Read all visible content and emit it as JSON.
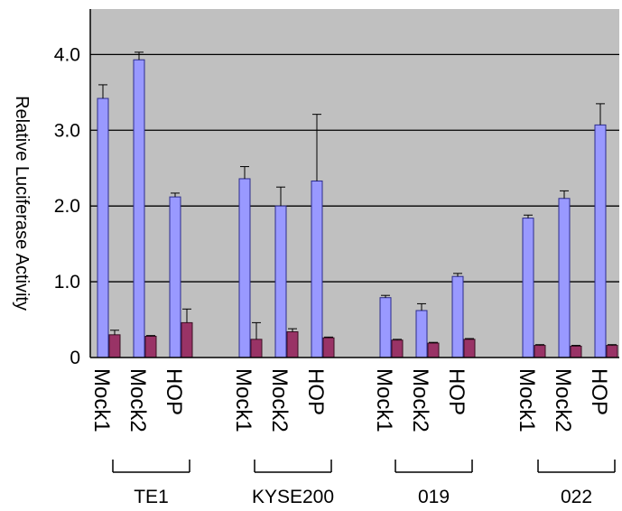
{
  "chart_data": {
    "type": "bar",
    "ylabel": "Relative Luciferase Activity",
    "ylim": [
      0,
      4.6
    ],
    "yticks": [
      {
        "value": 0,
        "label": "0"
      },
      {
        "value": 1,
        "label": "1.0"
      },
      {
        "value": 2,
        "label": "2.0"
      },
      {
        "value": 3,
        "label": "3.0"
      },
      {
        "value": 4,
        "label": "4.0"
      }
    ],
    "grid": true,
    "plot_background": "#c0c0c0",
    "groups": [
      {
        "name": "TE1",
        "categories": [
          "Mock1",
          "Mock2",
          "HOP"
        ],
        "series_values": [
          [
            3.42,
            3.93,
            2.12
          ],
          [
            0.3,
            0.28,
            0.46
          ]
        ],
        "series_errors": [
          [
            0.18,
            0.1,
            0.05
          ],
          [
            0.06,
            0.01,
            0.18
          ]
        ]
      },
      {
        "name": "KYSE200",
        "categories": [
          "Mock1",
          "Mock2",
          "HOP"
        ],
        "series_values": [
          [
            2.36,
            2.0,
            2.33
          ],
          [
            0.24,
            0.34,
            0.26
          ]
        ],
        "series_errors": [
          [
            0.16,
            0.25,
            0.88
          ],
          [
            0.22,
            0.04,
            0.01
          ]
        ]
      },
      {
        "name": "019",
        "categories": [
          "Mock1",
          "Mock2",
          "HOP"
        ],
        "series_values": [
          [
            0.79,
            0.62,
            1.07
          ],
          [
            0.23,
            0.19,
            0.24
          ]
        ],
        "series_errors": [
          [
            0.03,
            0.09,
            0.04
          ],
          [
            0.01,
            0.01,
            0.01
          ]
        ]
      },
      {
        "name": "022",
        "categories": [
          "Mock1",
          "Mock2",
          "HOP"
        ],
        "series_values": [
          [
            1.84,
            2.1,
            3.07
          ],
          [
            0.16,
            0.15,
            0.16
          ]
        ],
        "series_errors": [
          [
            0.04,
            0.1,
            0.28
          ],
          [
            0.01,
            0.01,
            0.01
          ]
        ]
      }
    ],
    "series_colors": [
      "#9999ff",
      "#993366"
    ],
    "series_border_colors": [
      "#2c2c8c",
      "#3a0f22"
    ]
  }
}
